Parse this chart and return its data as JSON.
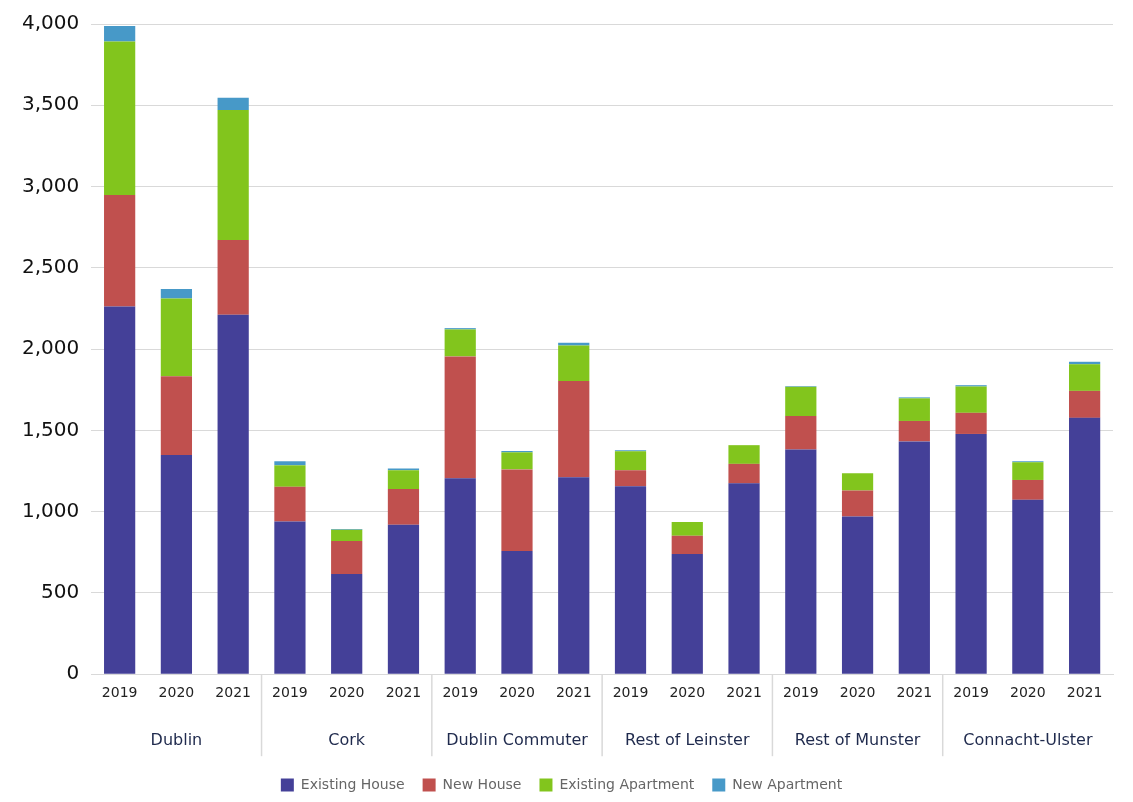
{
  "chart_data": {
    "type": "bar",
    "stacked": true,
    "categories": [
      "2019",
      "2020",
      "2021",
      "2019",
      "2020",
      "2021",
      "2019",
      "2020",
      "2021",
      "2019",
      "2020",
      "2021",
      "2019",
      "2020",
      "2021",
      "2019",
      "2020",
      "2021"
    ],
    "series": [
      {
        "name": "Existing House",
        "color": "#444098",
        "values": [
          2262,
          1348,
          2211,
          939,
          617,
          920,
          1205,
          758,
          1212,
          1157,
          739,
          1174,
          1382,
          970,
          1432,
          1478,
          1073,
          1577
        ]
      },
      {
        "name": "New House",
        "color": "#c0504e",
        "values": [
          686,
          485,
          460,
          214,
          202,
          220,
          750,
          502,
          592,
          97,
          112,
          120,
          206,
          160,
          126,
          130,
          122,
          166
        ]
      },
      {
        "name": "Existing Apartment",
        "color": "#82c51d",
        "values": [
          945,
          479,
          800,
          132,
          69,
          114,
          166,
          105,
          218,
          117,
          86,
          115,
          180,
          107,
          139,
          162,
          109,
          164
        ]
      },
      {
        "name": "New Apartment",
        "color": "#4799c8",
        "values": [
          94,
          57,
          76,
          25,
          5,
          12,
          8,
          8,
          17,
          6,
          0,
          null,
          4,
          0,
          6,
          8,
          6,
          15
        ]
      }
    ],
    "ylim": [
      0,
      4000
    ],
    "yticks": [
      0,
      {
        "value": 500,
        "label": "500"
      },
      {
        "value": 1000,
        "label": "1,000"
      },
      {
        "value": 1500,
        "label": "1,500"
      },
      {
        "value": 2000,
        "label": "2,000"
      },
      {
        "value": 2500,
        "label": "2,500"
      },
      {
        "value": 3000,
        "label": "3,000"
      },
      {
        "value": 3500,
        "label": "3,500"
      },
      {
        "value": 4000,
        "label": "4,000"
      }
    ],
    "grid": "y",
    "legend": "bottom",
    "annotations": [
      "Dublin",
      "Cork",
      "Dublin Commuter",
      "Rest of Leinster",
      "Rest of Munster",
      "Connacht-Ulster"
    ]
  }
}
